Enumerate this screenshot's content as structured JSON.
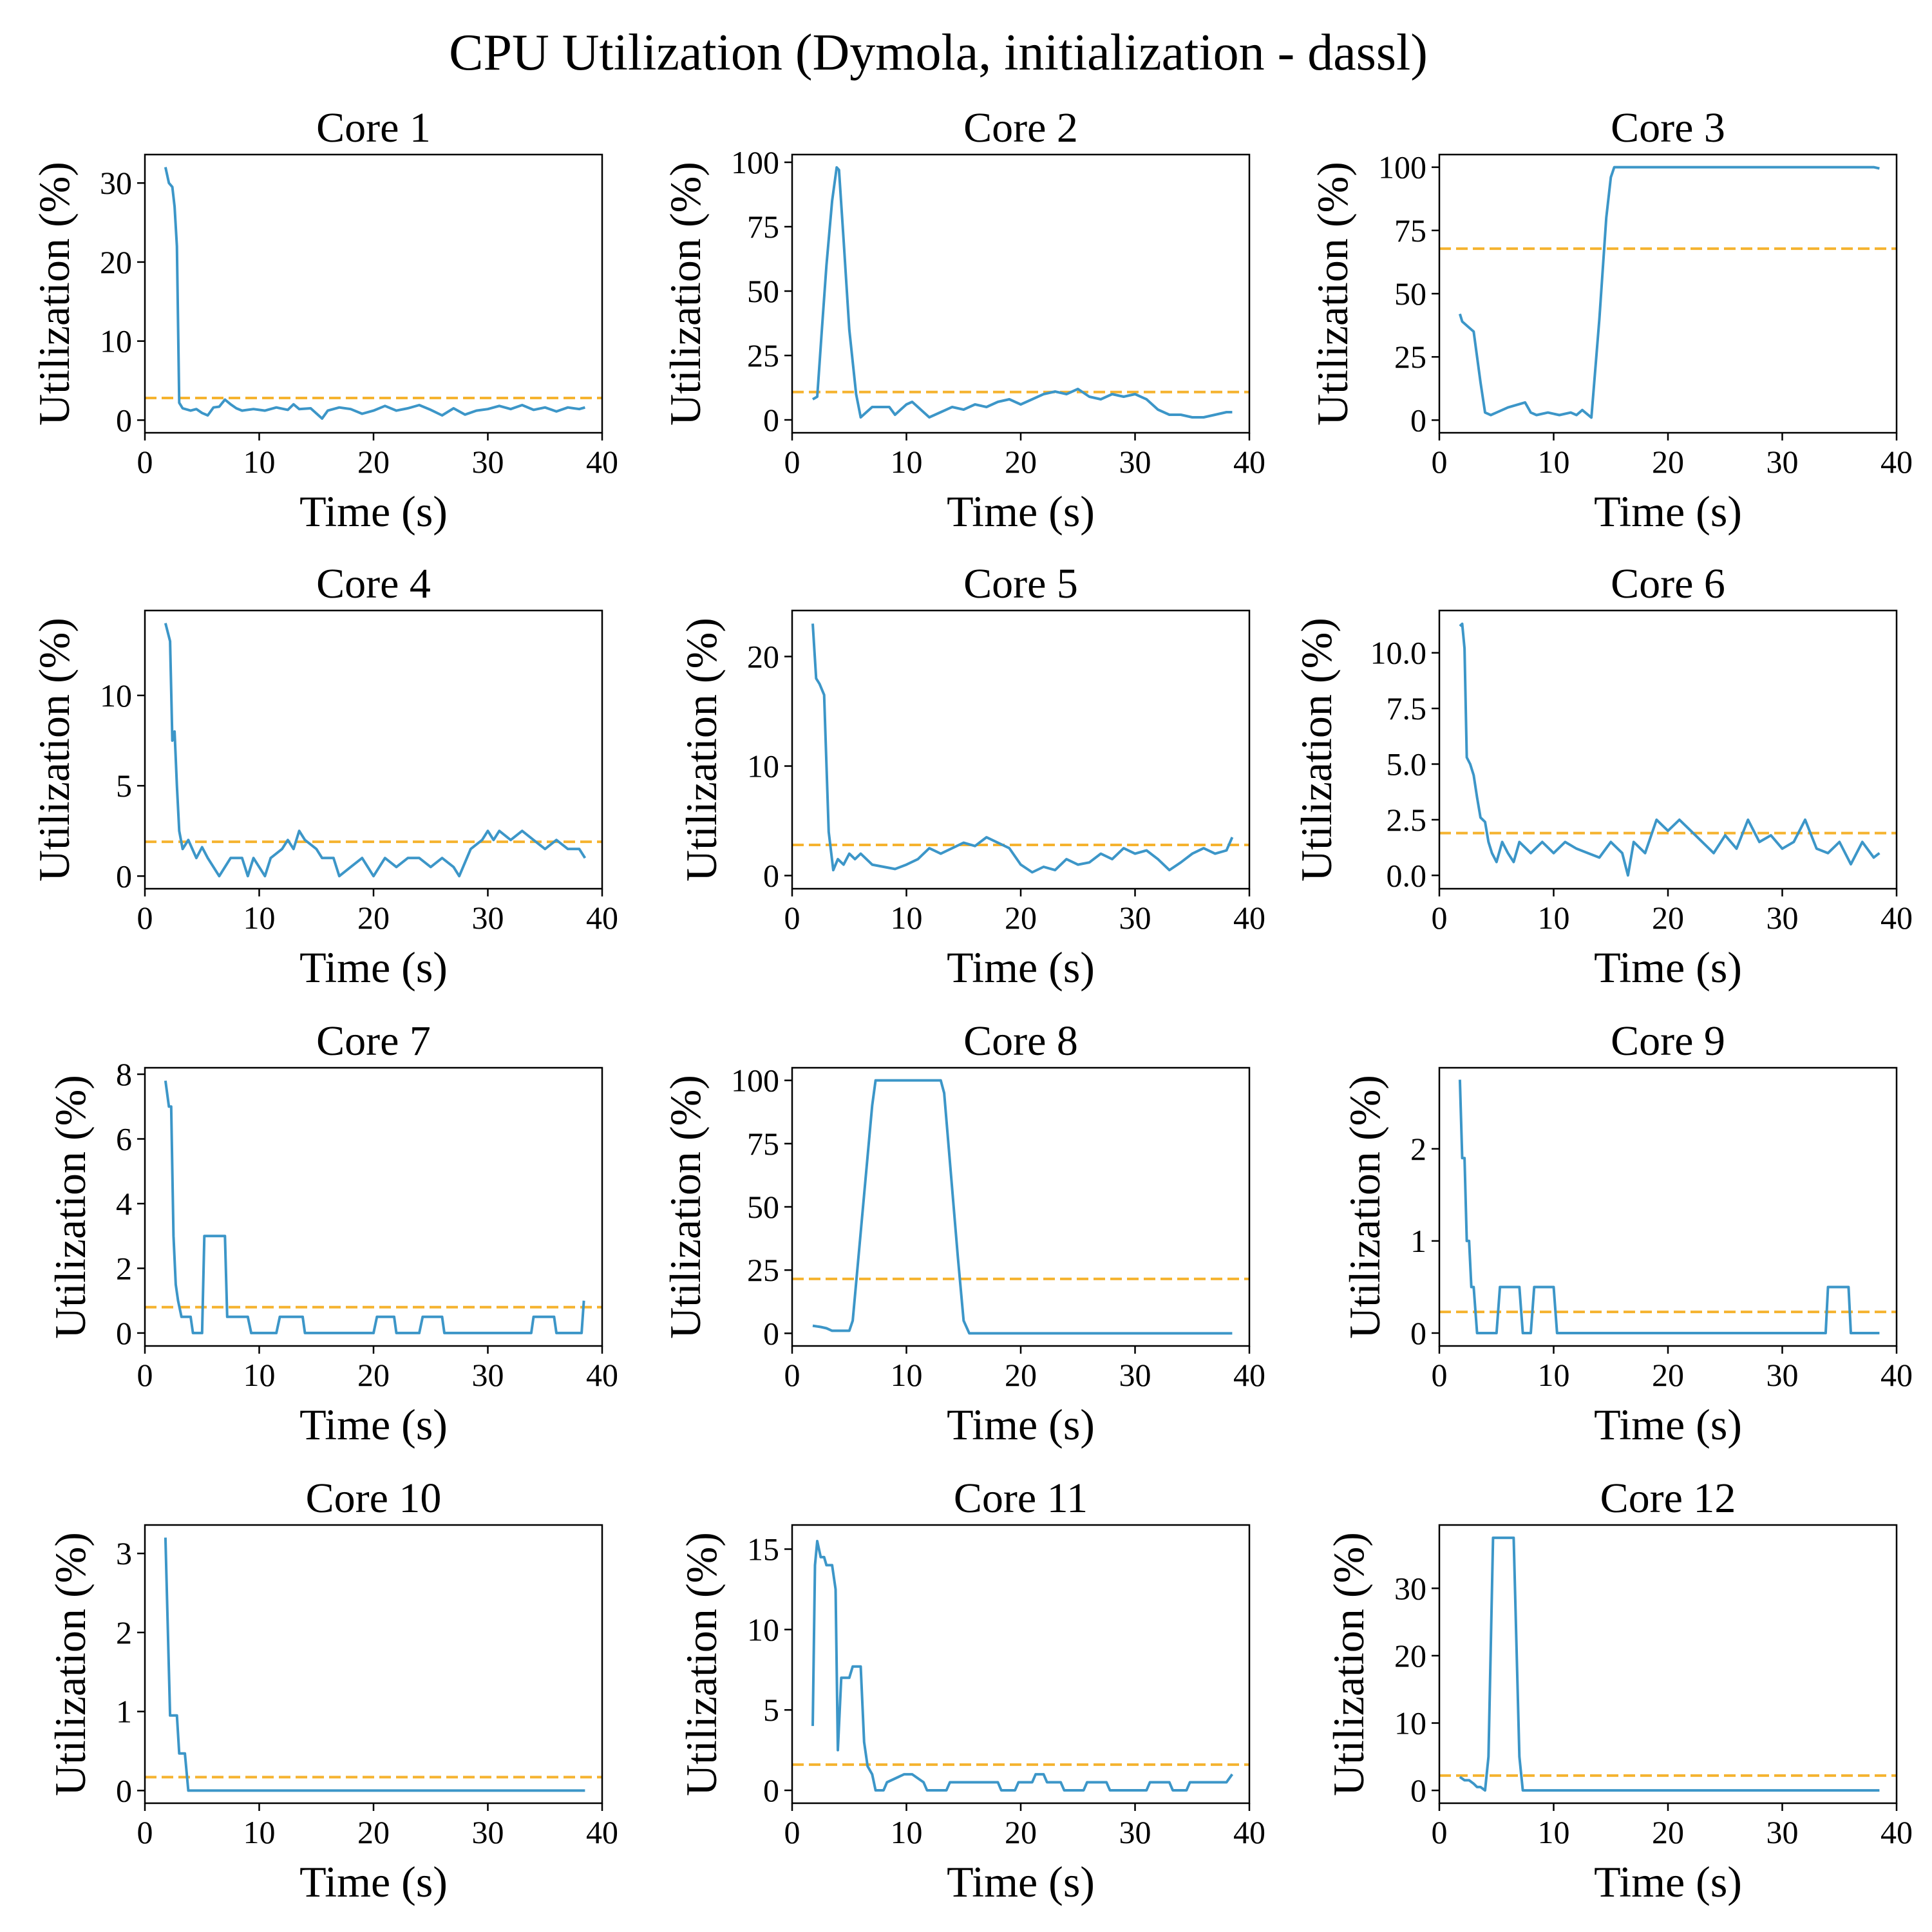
{
  "figure": {
    "title": "CPU Utilization (Dymola, initialization - dassl)",
    "colors": {
      "series": "#3c96c8",
      "mean": "#f5b32f"
    }
  },
  "chart_data": [
    {
      "type": "line",
      "title": "Core 1",
      "xlabel": "Time (s)",
      "ylabel": "Utilization (%)",
      "xlim": [
        0,
        40
      ],
      "ylim": [
        -1.6,
        33.6
      ],
      "xticks": [
        0,
        10,
        20,
        30,
        40
      ],
      "yticks": [
        0,
        10,
        20,
        30
      ],
      "mean": 2.8,
      "x": [
        1.8,
        2.1,
        2.4,
        2.6,
        2.8,
        3.0,
        3.3,
        4.0,
        4.5,
        5.0,
        5.5,
        6.0,
        6.5,
        7.0,
        7.5,
        8.0,
        8.5,
        9.5,
        10.5,
        11.5,
        12.5,
        13.0,
        13.5,
        14.5,
        15.5,
        16.0,
        17.0,
        18.0,
        19.0,
        20.0,
        21.0,
        22.0,
        23.0,
        24.0,
        25.0,
        26.0,
        27.0,
        28.0,
        29.0,
        30.0,
        31.0,
        32.0,
        33.0,
        34.0,
        35.0,
        36.0,
        37.0,
        38.0,
        38.5
      ],
      "y": [
        32,
        30,
        29.5,
        27,
        22,
        2.2,
        1.5,
        1.2,
        1.4,
        0.9,
        0.6,
        1.6,
        1.7,
        2.6,
        2.0,
        1.5,
        1.2,
        1.4,
        1.2,
        1.6,
        1.3,
        2.0,
        1.4,
        1.5,
        0.2,
        1.2,
        1.6,
        1.4,
        0.8,
        1.2,
        1.8,
        1.2,
        1.5,
        1.9,
        1.3,
        0.6,
        1.5,
        0.7,
        1.2,
        1.4,
        1.8,
        1.4,
        1.9,
        1.3,
        1.6,
        1.1,
        1.6,
        1.4,
        1.6
      ]
    },
    {
      "type": "line",
      "title": "Core 2",
      "xlabel": "Time (s)",
      "ylabel": "Utilization (%)",
      "xlim": [
        0,
        40
      ],
      "ylim": [
        -5,
        103
      ],
      "xticks": [
        0,
        10,
        20,
        30,
        40
      ],
      "yticks": [
        0,
        25,
        50,
        75,
        100
      ],
      "mean": 10.8,
      "x": [
        1.8,
        2.2,
        2.6,
        3.0,
        3.5,
        3.9,
        4.1,
        4.5,
        5.0,
        5.6,
        6.0,
        6.5,
        7.0,
        7.5,
        8.5,
        9.0,
        9.5,
        10.0,
        10.5,
        11.0,
        11.5,
        12.0,
        12.5,
        13.0,
        14.0,
        15.0,
        16.0,
        17.0,
        18.0,
        19.0,
        20.0,
        21.0,
        22.0,
        23.0,
        24.0,
        25.0,
        26.0,
        27.0,
        28.0,
        29.0,
        30.0,
        31.0,
        32.0,
        33.0,
        34.0,
        35.0,
        36.0,
        37.0,
        38.0,
        38.5
      ],
      "y": [
        8,
        9,
        35,
        60,
        85,
        98,
        97,
        70,
        35,
        10,
        1,
        3,
        5,
        5,
        5,
        2,
        4,
        6,
        7,
        5,
        3,
        1,
        2,
        3,
        5,
        4,
        6,
        5,
        7,
        8,
        6,
        8,
        10,
        11,
        10,
        12,
        9,
        8,
        10,
        9,
        10,
        8,
        4,
        2,
        2,
        1,
        1,
        2,
        3,
        3
      ]
    },
    {
      "type": "line",
      "title": "Core 3",
      "xlabel": "Time (s)",
      "ylabel": "Utilization (%)",
      "xlim": [
        0,
        40
      ],
      "ylim": [
        -5,
        105
      ],
      "xticks": [
        0,
        10,
        20,
        30,
        40
      ],
      "yticks": [
        0,
        25,
        50,
        75,
        100
      ],
      "mean": 67.8,
      "x": [
        1.8,
        2.0,
        2.5,
        3.0,
        3.3,
        3.6,
        4.0,
        4.5,
        5.0,
        6.0,
        7.5,
        8.0,
        8.5,
        9.5,
        10.5,
        11.5,
        12.0,
        12.5,
        13.3,
        14.0,
        14.6,
        15.0,
        15.3,
        20.0,
        25.0,
        30.0,
        35.0,
        38.0,
        38.5
      ],
      "y": [
        42,
        39,
        37,
        35,
        25,
        15,
        3,
        2,
        3,
        5,
        7,
        3,
        2,
        3,
        2,
        3,
        2,
        4,
        1,
        40,
        80,
        96,
        100,
        100,
        100,
        100,
        100,
        100,
        99.5
      ]
    },
    {
      "type": "line",
      "title": "Core 4",
      "xlabel": "Time (s)",
      "ylabel": "Utilization (%)",
      "xlim": [
        0,
        40
      ],
      "ylim": [
        -0.7,
        14.7
      ],
      "xticks": [
        0,
        10,
        20,
        30,
        40
      ],
      "yticks": [
        0,
        5,
        10
      ],
      "mean": 1.9,
      "x": [
        1.8,
        2.2,
        2.4,
        2.6,
        2.8,
        3.0,
        3.3,
        3.8,
        4.5,
        5.0,
        5.5,
        6.5,
        7.5,
        8.5,
        9.0,
        9.5,
        10.5,
        11.0,
        12.0,
        12.5,
        13.0,
        13.5,
        14.0,
        15.0,
        15.5,
        16.5,
        17.0,
        18.0,
        19.0,
        20.0,
        21.0,
        22.0,
        23.0,
        24.0,
        25.0,
        26.0,
        27.0,
        27.5,
        28.5,
        29.5,
        30.0,
        30.5,
        31.0,
        32.0,
        33.0,
        34.0,
        35.0,
        36.0,
        37.0,
        38.0,
        38.5
      ],
      "y": [
        14,
        13,
        7.5,
        8,
        5,
        2.5,
        1.5,
        2,
        1,
        1.6,
        1,
        0,
        1,
        1,
        0,
        1,
        0,
        1,
        1.5,
        2,
        1.5,
        2.5,
        2,
        1.5,
        1,
        1,
        0,
        0.5,
        1,
        0,
        1,
        0.5,
        1,
        1,
        0.5,
        1,
        0.5,
        0,
        1.5,
        2,
        2.5,
        2,
        2.5,
        2,
        2.5,
        2,
        1.5,
        2,
        1.5,
        1.5,
        1
      ]
    },
    {
      "type": "line",
      "title": "Core 5",
      "xlabel": "Time (s)",
      "ylabel": "Utilization (%)",
      "xlim": [
        0,
        40
      ],
      "ylim": [
        -1.2,
        24.2
      ],
      "xticks": [
        0,
        10,
        20,
        30,
        40
      ],
      "yticks": [
        0,
        10,
        20
      ],
      "mean": 2.8,
      "x": [
        1.8,
        2.1,
        2.4,
        2.8,
        3.2,
        3.6,
        4.0,
        4.5,
        5.0,
        5.5,
        6.0,
        7.0,
        8.0,
        9.0,
        10.0,
        11.0,
        12.0,
        13.0,
        14.0,
        15.0,
        16.0,
        17.0,
        18.0,
        19.0,
        20.0,
        21.0,
        22.0,
        23.0,
        24.0,
        25.0,
        26.0,
        27.0,
        28.0,
        29.0,
        30.0,
        31.0,
        32.0,
        33.0,
        34.0,
        35.0,
        36.0,
        37.0,
        38.0,
        38.5
      ],
      "y": [
        23,
        18,
        17.5,
        16.5,
        4,
        0.5,
        1.5,
        1,
        2,
        1.5,
        2,
        1,
        0.8,
        0.6,
        1,
        1.5,
        2.5,
        2,
        2.5,
        3,
        2.7,
        3.5,
        3,
        2.5,
        1,
        0.3,
        0.8,
        0.5,
        1.5,
        1,
        1.2,
        2,
        1.5,
        2.5,
        2,
        2.3,
        1.5,
        0.5,
        1.2,
        2,
        2.5,
        2,
        2.3,
        3.5
      ]
    },
    {
      "type": "line",
      "title": "Core 6",
      "xlabel": "Time (s)",
      "ylabel": "Utilization (%)",
      "xlim": [
        0,
        40
      ],
      "ylim": [
        -0.6,
        11.9
      ],
      "xticks": [
        0,
        10,
        20,
        30,
        40
      ],
      "yticks": [
        0,
        2.5,
        5,
        7.5,
        10
      ],
      "ytick_labels": [
        "0.0",
        "2.5",
        "5.0",
        "7.5",
        "10.0"
      ],
      "mean": 1.9,
      "x": [
        1.8,
        2.0,
        2.2,
        2.4,
        2.7,
        3.0,
        3.3,
        3.6,
        4.0,
        4.3,
        4.6,
        5.0,
        5.5,
        6.0,
        6.5,
        7.0,
        8.0,
        9.0,
        10.0,
        11.0,
        12.0,
        13.0,
        14.0,
        15.0,
        16.0,
        16.5,
        17.0,
        18.0,
        19.0,
        20.0,
        21.0,
        22.0,
        23.0,
        24.0,
        25.0,
        26.0,
        27.0,
        28.0,
        29.0,
        30.0,
        31.0,
        32.0,
        33.0,
        34.0,
        35.0,
        36.0,
        37.0,
        38.0,
        38.5
      ],
      "y": [
        11.2,
        11.3,
        10.2,
        5.3,
        5,
        4.5,
        3.5,
        2.6,
        2.4,
        1.5,
        1,
        0.6,
        1.5,
        1,
        0.6,
        1.5,
        1,
        1.5,
        1,
        1.5,
        1.2,
        1,
        0.8,
        1.5,
        1,
        0,
        1.5,
        1,
        2.5,
        2,
        2.5,
        2,
        1.5,
        1,
        1.8,
        1.2,
        2.5,
        1.5,
        1.8,
        1.2,
        1.5,
        2.5,
        1.2,
        1,
        1.5,
        0.5,
        1.5,
        0.8,
        1
      ]
    },
    {
      "type": "line",
      "title": "Core 7",
      "xlabel": "Time (s)",
      "ylabel": "Utilization (%)",
      "xlim": [
        0,
        40
      ],
      "ylim": [
        -0.4,
        8.2
      ],
      "xticks": [
        0,
        10,
        20,
        30,
        40
      ],
      "yticks": [
        0,
        2,
        4,
        6,
        8
      ],
      "mean": 0.8,
      "x": [
        1.8,
        2.1,
        2.3,
        2.5,
        2.7,
        2.9,
        3.2,
        4.0,
        4.2,
        4.5,
        5.0,
        5.2,
        7.0,
        7.2,
        9.0,
        9.3,
        11.5,
        11.8,
        13.8,
        14.0,
        20.0,
        20.3,
        21.8,
        22.0,
        24.0,
        24.3,
        26.0,
        26.2,
        33.8,
        34.0,
        35.8,
        36.0,
        38.2,
        38.4
      ],
      "y": [
        7.8,
        7.0,
        7.0,
        3.0,
        1.5,
        1.0,
        0.5,
        0.5,
        0.0,
        0.0,
        0.0,
        3.0,
        3.0,
        0.5,
        0.5,
        0.0,
        0.0,
        0.5,
        0.5,
        0.0,
        0.0,
        0.5,
        0.5,
        0.0,
        0.0,
        0.5,
        0.5,
        0.0,
        0.0,
        0.5,
        0.5,
        0.0,
        0.0,
        1.0
      ]
    },
    {
      "type": "line",
      "title": "Core 8",
      "xlabel": "Time (s)",
      "ylabel": "Utilization (%)",
      "xlim": [
        0,
        40
      ],
      "ylim": [
        -5,
        105
      ],
      "xticks": [
        0,
        10,
        20,
        30,
        40
      ],
      "yticks": [
        0,
        25,
        50,
        75,
        100
      ],
      "mean": 21.5,
      "x": [
        1.8,
        2.5,
        3.0,
        3.5,
        4.0,
        5.0,
        5.3,
        7.0,
        7.3,
        13.0,
        13.3,
        14.5,
        15.0,
        15.5,
        20.0,
        25.0,
        30.0,
        35.0,
        38.5
      ],
      "y": [
        3,
        2.5,
        2,
        1,
        1,
        1,
        5,
        90,
        100,
        100,
        95,
        30,
        5,
        0,
        0,
        0,
        0,
        0,
        0
      ]
    },
    {
      "type": "line",
      "title": "Core 9",
      "xlabel": "Time (s)",
      "ylabel": "Utilization (%)",
      "xlim": [
        0,
        40
      ],
      "ylim": [
        -0.14,
        2.88
      ],
      "xticks": [
        0,
        10,
        20,
        30,
        40
      ],
      "yticks": [
        0,
        1,
        2
      ],
      "mean": 0.23,
      "x": [
        1.8,
        2.0,
        2.2,
        2.4,
        2.6,
        2.8,
        3.0,
        3.3,
        3.6,
        4.5,
        5.0,
        5.3,
        7.0,
        7.3,
        8.0,
        8.3,
        10.0,
        10.3,
        33.8,
        34.0,
        35.8,
        36.0,
        38.5
      ],
      "y": [
        2.75,
        1.9,
        1.9,
        1.0,
        1.0,
        0.5,
        0.5,
        0.0,
        0.0,
        0.0,
        0.0,
        0.5,
        0.5,
        0.0,
        0.0,
        0.5,
        0.5,
        0.0,
        0.0,
        0.5,
        0.5,
        0.0,
        0.0
      ]
    },
    {
      "type": "line",
      "title": "Core 10",
      "xlabel": "Time (s)",
      "ylabel": "Utilization (%)",
      "xlim": [
        0,
        40
      ],
      "ylim": [
        -0.16,
        3.36
      ],
      "xticks": [
        0,
        10,
        20,
        30,
        40
      ],
      "yticks": [
        0,
        1,
        2,
        3
      ],
      "mean": 0.17,
      "x": [
        1.8,
        2.2,
        2.8,
        3.0,
        3.5,
        3.8,
        4.0,
        10.0,
        20.0,
        30.0,
        38.5
      ],
      "y": [
        3.2,
        0.95,
        0.95,
        0.47,
        0.47,
        0.0,
        0.0,
        0.0,
        0.0,
        0.0,
        0.0
      ]
    },
    {
      "type": "line",
      "title": "Core 11",
      "xlabel": "Time (s)",
      "ylabel": "Utilization (%)",
      "xlim": [
        0,
        40
      ],
      "ylim": [
        -0.8,
        16.5
      ],
      "xticks": [
        0,
        10,
        20,
        30,
        40
      ],
      "yticks": [
        0,
        5,
        10,
        15
      ],
      "mean": 1.6,
      "x": [
        1.8,
        2.0,
        2.2,
        2.5,
        2.8,
        3.0,
        3.5,
        3.8,
        4.0,
        4.3,
        4.6,
        5.0,
        5.3,
        6.0,
        6.3,
        6.6,
        7.0,
        7.3,
        8.0,
        8.3,
        9.8,
        10.0,
        10.5,
        11.5,
        11.8,
        13.5,
        13.8,
        18.0,
        18.3,
        19.5,
        19.8,
        21.0,
        21.3,
        22.0,
        22.3,
        23.5,
        23.8,
        25.5,
        25.8,
        27.5,
        27.8,
        31.0,
        31.3,
        33.0,
        33.3,
        34.5,
        34.8,
        38.0,
        38.5
      ],
      "y": [
        4,
        14,
        15.5,
        14.5,
        14.5,
        14,
        14,
        12.5,
        2.5,
        7,
        7,
        7,
        7.7,
        7.7,
        3,
        1.5,
        1,
        0,
        0,
        0.5,
        1,
        1,
        1,
        0.5,
        0,
        0,
        0.5,
        0.5,
        0,
        0,
        0.5,
        0.5,
        1,
        1,
        0.5,
        0.5,
        0,
        0,
        0.5,
        0.5,
        0,
        0,
        0.5,
        0.5,
        0,
        0,
        0.5,
        0.5,
        1
      ]
    },
    {
      "type": "line",
      "title": "Core 12",
      "xlabel": "Time (s)",
      "ylabel": "Utilization (%)",
      "xlim": [
        0,
        40
      ],
      "ylim": [
        -1.9,
        39.4
      ],
      "xticks": [
        0,
        10,
        20,
        30,
        40
      ],
      "yticks": [
        0,
        10,
        20,
        30
      ],
      "mean": 2.2,
      "x": [
        1.8,
        2.2,
        2.6,
        3.0,
        3.3,
        3.6,
        4.0,
        4.3,
        4.7,
        5.0,
        6.0,
        6.5,
        7.0,
        7.3,
        10.0,
        20.0,
        30.0,
        38.5
      ],
      "y": [
        2,
        1.5,
        1.5,
        1,
        0.5,
        0.5,
        0,
        5,
        37.5,
        37.5,
        37.5,
        37.5,
        5,
        0,
        0,
        0,
        0,
        0
      ]
    }
  ]
}
